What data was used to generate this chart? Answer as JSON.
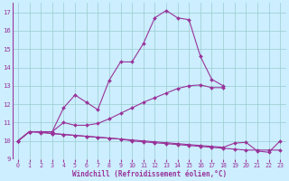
{
  "bg_color": "#cceeff",
  "line_color": "#993399",
  "grid_color": "#99cccc",
  "xlabel": "Windchill (Refroidissement éolien,°C)",
  "xlabel_color": "#993399",
  "ylim": [
    9,
    17.5
  ],
  "xlim": [
    -0.5,
    23.5
  ],
  "yticks": [
    9,
    10,
    11,
    12,
    13,
    14,
    15,
    16,
    17
  ],
  "xticks": [
    0,
    1,
    2,
    3,
    4,
    5,
    6,
    7,
    8,
    9,
    10,
    11,
    12,
    13,
    14,
    15,
    16,
    17,
    18,
    19,
    20,
    21,
    22,
    23
  ],
  "series1_x": [
    0,
    1,
    2,
    3,
    4,
    5,
    6,
    7,
    8,
    9,
    10,
    11,
    12,
    13,
    14,
    15,
    16,
    17,
    18
  ],
  "series1_y": [
    10.0,
    10.5,
    10.5,
    10.5,
    11.8,
    12.5,
    12.1,
    11.7,
    13.3,
    14.3,
    14.3,
    15.3,
    16.7,
    17.1,
    16.7,
    16.6,
    14.6,
    13.35,
    13.0
  ],
  "series2_x": [
    0,
    1,
    2,
    3,
    4,
    5,
    6,
    7,
    8,
    9,
    10,
    11,
    12,
    13,
    14,
    15,
    16,
    17,
    18
  ],
  "series2_y": [
    10.0,
    10.5,
    10.5,
    10.5,
    11.0,
    10.85,
    10.85,
    10.95,
    11.2,
    11.5,
    11.8,
    12.1,
    12.35,
    12.6,
    12.85,
    13.0,
    13.05,
    12.9,
    12.9
  ],
  "series3_x": [
    0,
    1,
    2,
    3,
    4,
    5,
    6,
    7,
    8,
    9,
    10,
    11,
    12,
    13,
    14,
    15,
    16,
    17,
    18,
    19,
    20,
    21,
    22,
    23
  ],
  "series3_y": [
    10.0,
    10.5,
    10.5,
    10.4,
    10.35,
    10.3,
    10.25,
    10.2,
    10.15,
    10.1,
    10.0,
    9.95,
    9.9,
    9.85,
    9.8,
    9.75,
    9.7,
    9.65,
    9.6,
    9.55,
    9.5,
    9.5,
    9.5,
    9.5
  ],
  "series4_x": [
    0,
    1,
    2,
    3,
    4,
    5,
    6,
    7,
    8,
    9,
    10,
    11,
    12,
    13,
    14,
    15,
    16,
    17,
    18,
    19,
    20,
    21,
    22,
    23
  ],
  "series4_y": [
    10.0,
    10.5,
    10.45,
    10.4,
    10.35,
    10.3,
    10.25,
    10.2,
    10.15,
    10.1,
    10.05,
    10.0,
    9.95,
    9.9,
    9.85,
    9.8,
    9.75,
    9.7,
    9.65,
    9.88,
    9.92,
    9.45,
    9.38,
    10.0
  ]
}
